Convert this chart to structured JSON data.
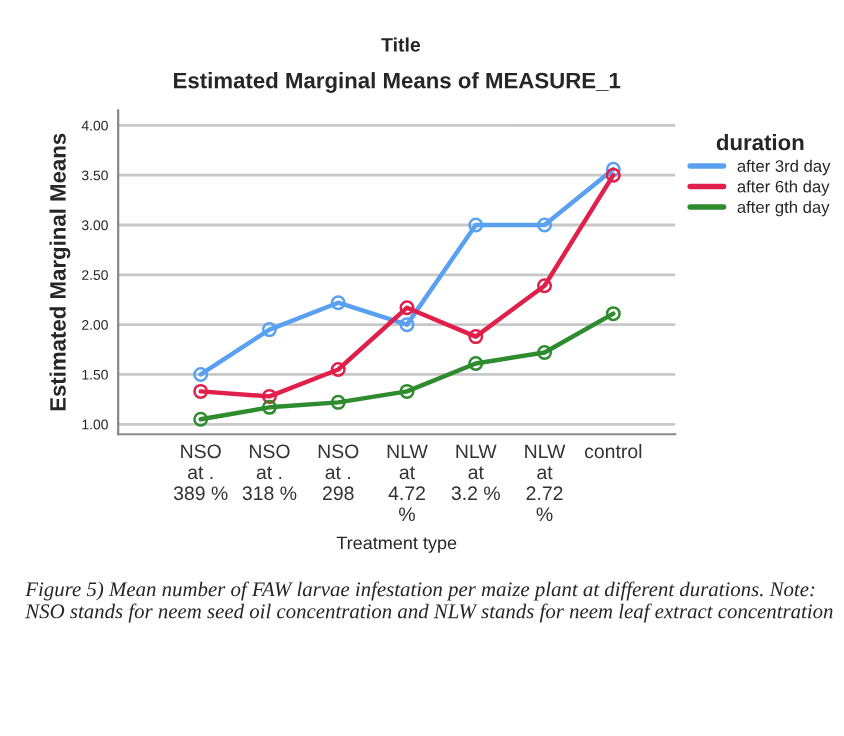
{
  "chart_data": {
    "type": "line",
    "title": "Estimated Marginal Means of MEASURE_1",
    "subtitle": "Title",
    "xlabel": "Treatment type",
    "ylabel": "Estimated Marginal Means",
    "legend_title": "duration",
    "categories": [
      "NSO at . 389 %",
      "NSO at . 318 %",
      "NSO at . 298",
      "NLW at 4.72 %",
      "NLW at 3.2 %",
      "NLW at 2.72 %",
      "control"
    ],
    "series": [
      {
        "name": "after 3rd day",
        "color": "#5aa0f0",
        "values": [
          1.5,
          1.95,
          2.22,
          2.0,
          3.0,
          3.0,
          3.56
        ]
      },
      {
        "name": "after 6th day",
        "color": "#e0204a",
        "values": [
          1.33,
          1.28,
          1.55,
          2.17,
          1.88,
          2.39,
          3.5
        ]
      },
      {
        "name": "after gth day",
        "color": "#2e8b2e",
        "values": [
          1.05,
          1.17,
          1.22,
          1.33,
          1.61,
          1.72,
          2.11
        ]
      }
    ],
    "ylim": [
      0.9,
      4.15
    ],
    "yticks": [
      {
        "value": 1,
        "label": "1.00"
      },
      {
        "value": 1.5,
        "label": "1.50"
      },
      {
        "value": 2,
        "label": "2.00"
      },
      {
        "value": 2.5,
        "label": "2.50"
      },
      {
        "value": 3,
        "label": "3.00"
      },
      {
        "value": 3.5,
        "label": "3.50"
      },
      {
        "value": 4,
        "label": "4.00"
      }
    ],
    "grid": "y",
    "legend": "right",
    "marker": "circle",
    "line_style": "solid",
    "annotations": [
      "Figure 5) Mean number of FAW larvae infestation per maize plant at different durations. Note: NSO stands for neem seed oil concentration and NLW stands for neem leaf extract concentration"
    ]
  }
}
